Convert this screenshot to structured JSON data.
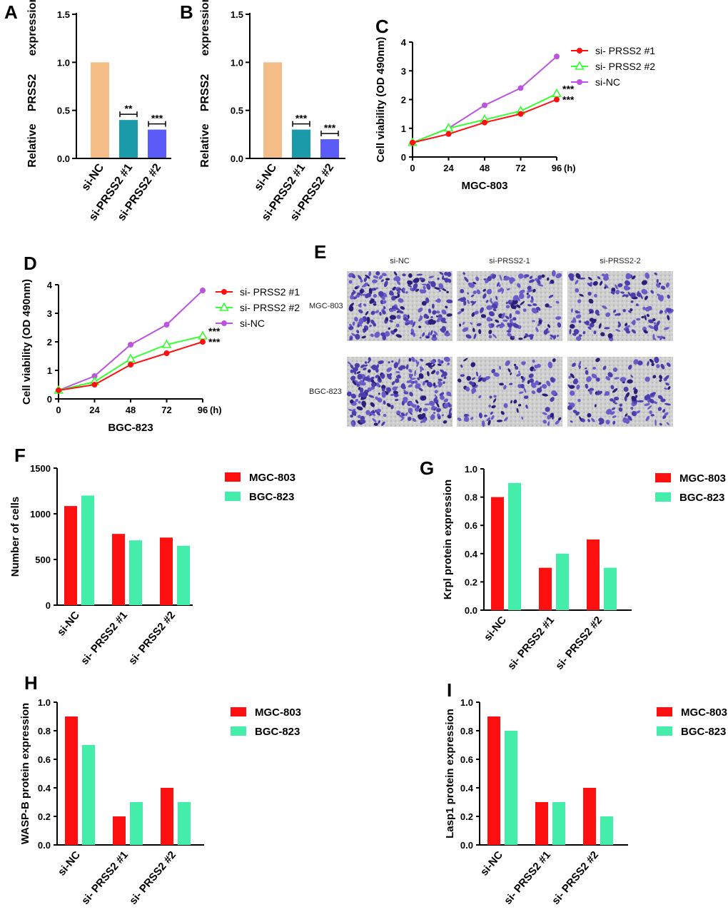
{
  "colors": {
    "si_nc_bar": "#F4BD87",
    "prss2_1_bar": "#1B9AAA",
    "prss2_2_bar": "#5B5BF7",
    "red": "#FF1010",
    "green": "#33FF33",
    "purple": "#BB55DD",
    "mint": "#44EEAA",
    "crystal": "#4B3FAE"
  },
  "chart_data": [
    {
      "panel": "A",
      "type": "bar",
      "ylabel_parts": [
        "Relative",
        "PRSS2",
        "expression"
      ],
      "categories": [
        "si-NC",
        "si-PRSS2 #1",
        "si-PRSS2 #2"
      ],
      "values": [
        1.0,
        0.4,
        0.3
      ],
      "ylim": [
        0,
        1.5
      ],
      "yticks": [
        "0.0",
        "0.5",
        "1.0",
        "1.5"
      ],
      "significance": [
        "",
        "**",
        "***"
      ]
    },
    {
      "panel": "B",
      "type": "bar",
      "ylabel_parts": [
        "Relative",
        "PRSS2",
        "expression"
      ],
      "categories": [
        "si-NC",
        "si-PRSS2 #1",
        "si-PRSS2 #2"
      ],
      "values": [
        1.0,
        0.3,
        0.2
      ],
      "ylim": [
        0,
        1.5
      ],
      "yticks": [
        "0.0",
        "0.5",
        "1.0",
        "1.5"
      ],
      "significance": [
        "",
        "***",
        "***"
      ]
    },
    {
      "panel": "C",
      "type": "line",
      "title": "MGC-803",
      "ylabel": "Cell viability (OD 490nm)",
      "x": [
        0,
        24,
        48,
        72,
        96
      ],
      "xticks": [
        "0",
        "24",
        "48",
        "72",
        "96"
      ],
      "xunit": "(h)",
      "ylim": [
        0,
        4
      ],
      "yticks": [
        "0",
        "1",
        "2",
        "3",
        "4"
      ],
      "series": [
        {
          "name": "si- PRSS2 #1",
          "values": [
            0.5,
            0.8,
            1.2,
            1.5,
            2.0
          ],
          "sig": "***"
        },
        {
          "name": "si- PRSS2 #2",
          "values": [
            0.5,
            1.0,
            1.3,
            1.6,
            2.2
          ],
          "sig": "***"
        },
        {
          "name": "si-NC",
          "values": [
            0.5,
            1.0,
            1.8,
            2.4,
            3.5
          ],
          "sig": ""
        }
      ]
    },
    {
      "panel": "D",
      "type": "line",
      "title": "BGC-823",
      "ylabel": "Cell viability (OD 490nm)",
      "x": [
        0,
        24,
        48,
        72,
        96
      ],
      "xticks": [
        "0",
        "24",
        "48",
        "72",
        "96"
      ],
      "xunit": "(h)",
      "ylim": [
        0,
        4
      ],
      "yticks": [
        "0",
        "1",
        "2",
        "3",
        "4"
      ],
      "series": [
        {
          "name": "si- PRSS2 #1",
          "values": [
            0.3,
            0.5,
            1.2,
            1.6,
            2.0
          ],
          "sig": "***"
        },
        {
          "name": "si- PRSS2 #2",
          "values": [
            0.3,
            0.6,
            1.4,
            1.9,
            2.2
          ],
          "sig": "***"
        },
        {
          "name": "si-NC",
          "values": [
            0.3,
            0.8,
            1.9,
            2.6,
            3.8
          ],
          "sig": ""
        }
      ]
    },
    {
      "panel": "F",
      "type": "bar",
      "ylabel": "Number of cells",
      "categories": [
        "si-NC",
        "si- PRSS2  #1",
        "si- PRSS2  #2"
      ],
      "ylim": [
        0,
        1500
      ],
      "yticks": [
        "0",
        "500",
        "1000",
        "1500"
      ],
      "series": [
        {
          "name": "MGC-803",
          "values": [
            1085,
            780,
            740
          ]
        },
        {
          "name": "BGC-823",
          "values": [
            1200,
            710,
            650
          ]
        }
      ]
    },
    {
      "panel": "G",
      "type": "bar",
      "ylabel": "Krpl protein expression",
      "categories": [
        "si-NC",
        "si- PRSS2  #1",
        "si- PRSS2  #2"
      ],
      "ylim": [
        0,
        1.0
      ],
      "yticks": [
        "0.0",
        "0.2",
        "0.4",
        "0.6",
        "0.8",
        "1.0"
      ],
      "series": [
        {
          "name": "MGC-803",
          "values": [
            0.8,
            0.3,
            0.5
          ]
        },
        {
          "name": "BGC-823",
          "values": [
            0.9,
            0.4,
            0.3
          ]
        }
      ]
    },
    {
      "panel": "H",
      "type": "bar",
      "ylabel": "WASP-B protein expression",
      "categories": [
        "si-NC",
        "si- PRSS2  #1",
        "si- PRSS2  #2"
      ],
      "ylim": [
        0,
        1.0
      ],
      "yticks": [
        "0.0",
        "0.2",
        "0.4",
        "0.6",
        "0.8",
        "1.0"
      ],
      "series": [
        {
          "name": "MGC-803",
          "values": [
            0.9,
            0.2,
            0.4
          ]
        },
        {
          "name": "BGC-823",
          "values": [
            0.7,
            0.3,
            0.3
          ]
        }
      ]
    },
    {
      "panel": "I",
      "type": "bar",
      "ylabel": "Lasp1 protein expression",
      "categories": [
        "si-NC",
        "si- PRSS2  #1",
        "si- PRSS2  #2"
      ],
      "ylim": [
        0,
        1.0
      ],
      "yticks": [
        "0.0",
        "0.2",
        "0.4",
        "0.6",
        "0.8",
        "1.0"
      ],
      "series": [
        {
          "name": "MGC-803",
          "values": [
            0.9,
            0.3,
            0.4
          ]
        },
        {
          "name": "BGC-823",
          "values": [
            0.8,
            0.3,
            0.2
          ]
        }
      ]
    }
  ],
  "panel_e": {
    "letter": "E",
    "columns": [
      "si-NC",
      "si-PRSS2-1",
      "si-PRSS2-2"
    ],
    "rows": [
      "MGC-803",
      "BGC-823"
    ],
    "stain_density": [
      [
        0.85,
        0.65,
        0.55
      ],
      [
        0.95,
        0.4,
        0.5
      ]
    ]
  }
}
